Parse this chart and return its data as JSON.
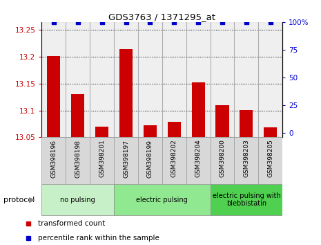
{
  "title": "GDS3763 / 1371295_at",
  "samples": [
    "GSM398196",
    "GSM398198",
    "GSM398201",
    "GSM398197",
    "GSM398199",
    "GSM398202",
    "GSM398204",
    "GSM398200",
    "GSM398203",
    "GSM398205"
  ],
  "bar_values": [
    13.201,
    13.13,
    13.07,
    13.215,
    13.072,
    13.079,
    13.152,
    13.11,
    13.101,
    13.068
  ],
  "percentile_values": [
    100,
    100,
    100,
    100,
    100,
    100,
    100,
    100,
    100,
    100
  ],
  "bar_color": "#cc0000",
  "percentile_color": "#0000cc",
  "ylim_left": [
    13.05,
    13.265
  ],
  "ylim_right": [
    -3.75,
    100
  ],
  "yticks_left": [
    13.05,
    13.1,
    13.15,
    13.2,
    13.25
  ],
  "yticks_left_labels": [
    "13.05",
    "13.1",
    "13.15",
    "13.2",
    "13.25"
  ],
  "yticks_right": [
    0,
    25,
    50,
    75,
    100
  ],
  "yticks_right_labels": [
    "0",
    "25",
    "50",
    "75",
    "100%"
  ],
  "groups": [
    {
      "label": "no pulsing",
      "start": 0,
      "end": 3,
      "color": "#c8f0c8"
    },
    {
      "label": "electric pulsing",
      "start": 3,
      "end": 7,
      "color": "#90e890"
    },
    {
      "label": "electric pulsing with\nblebbistatin",
      "start": 7,
      "end": 10,
      "color": "#50d050"
    }
  ],
  "protocol_label": "protocol",
  "legend_items": [
    {
      "color": "#cc0000",
      "label": "transformed count"
    },
    {
      "color": "#0000cc",
      "label": "percentile rank within the sample"
    }
  ],
  "tick_label_bg": "#d8d8d8",
  "grid_color": "black",
  "background_color": "#ffffff",
  "bar_width": 0.55
}
